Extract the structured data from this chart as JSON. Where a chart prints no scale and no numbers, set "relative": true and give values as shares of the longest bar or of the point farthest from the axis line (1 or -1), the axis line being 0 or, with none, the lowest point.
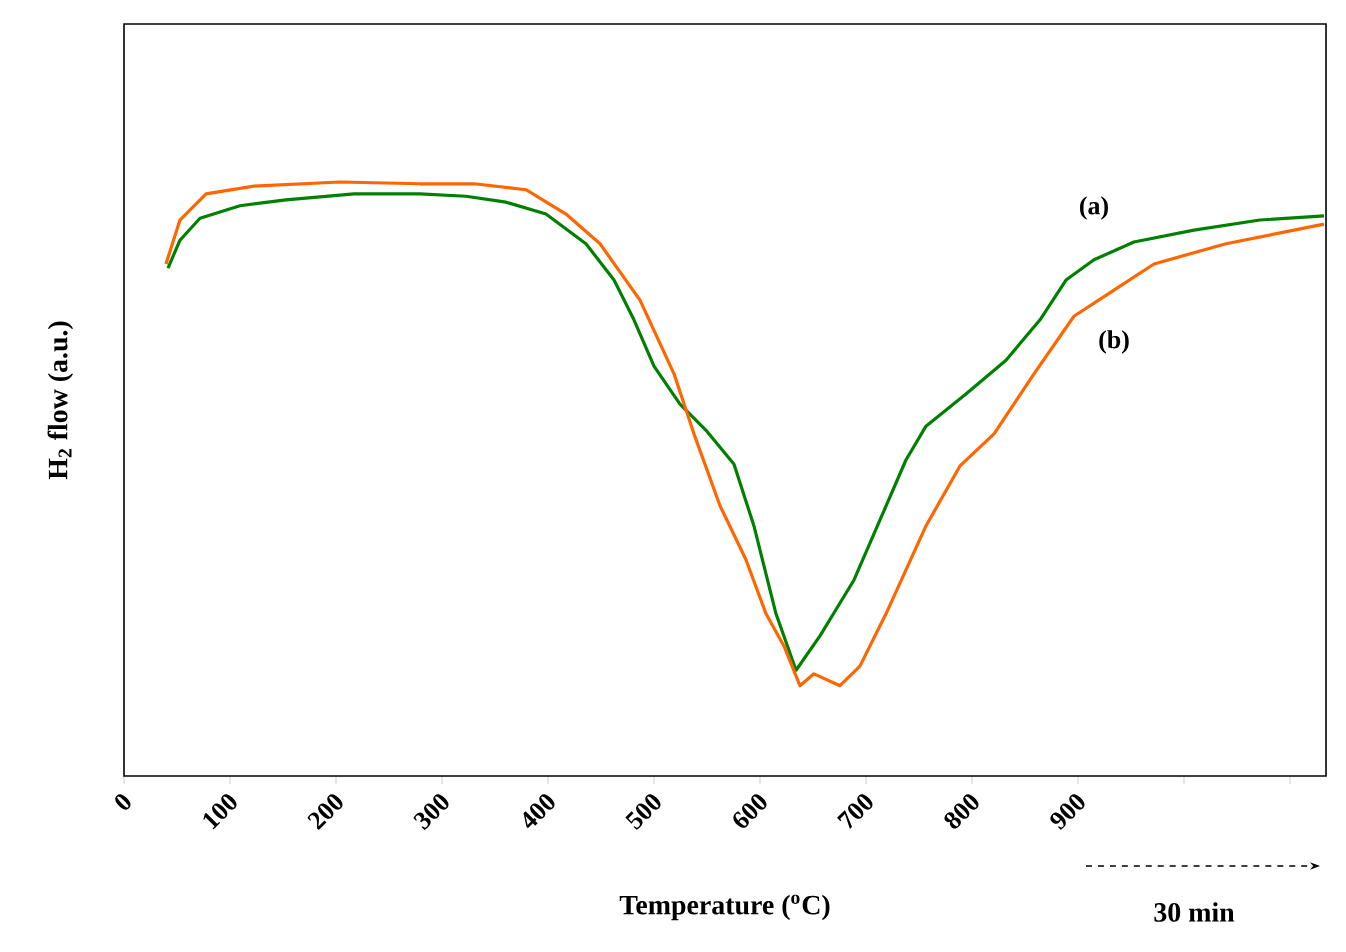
{
  "chart_data": {
    "type": "line",
    "xlabel": "Temperature ($^{o}$C)",
    "ylabel": "H$_{2}$ flow (a.u.)",
    "relative": true,
    "xlim": [
      0,
      1134
    ],
    "xticks": [
      0,
      100,
      200,
      300,
      400,
      500,
      600,
      700,
      800,
      900,
      {
        "value": 1000,
        "label": null
      },
      {
        "value": 1100,
        "label": null
      }
    ],
    "grid": false,
    "marker": "none",
    "line_style": "solid",
    "annotations": [
      "30 min"
    ],
    "series": [
      {
        "name": "(a)",
        "color": "#008000",
        "x": [
          41.5,
          52.8,
          71.7,
          109.4,
          152.8,
          217,
          279.2,
          322.6,
          360.4,
          398.1,
          435.8,
          462.3,
          481.1,
          500,
          524.5,
          549.1,
          575.5,
          594.3,
          615.1,
          634,
          656.6,
          688.7,
          713.2,
          737.7,
          756.6,
          794.3,
          832.1,
          864.2,
          888.7,
          915.1,
          952.8,
          1009.4,
          1071.7,
          1132.1
        ],
        "values": [
          0.855,
          0.902,
          0.939,
          0.96,
          0.97,
          0.98,
          0.98,
          0.976,
          0.966,
          0.946,
          0.896,
          0.835,
          0.768,
          0.69,
          0.626,
          0.582,
          0.525,
          0.421,
          0.273,
          0.178,
          0.236,
          0.33,
          0.431,
          0.532,
          0.589,
          0.643,
          0.7,
          0.768,
          0.835,
          0.869,
          0.899,
          0.919,
          0.936,
          0.943
        ]
      },
      {
        "name": "(b)",
        "color": "#ff6600",
        "x": [
          39.6,
          52.8,
          77.4,
          122.6,
          203.8,
          279.2,
          330.2,
          379.2,
          417,
          449.1,
          486.8,
          518.9,
          537.7,
          562.3,
          586.8,
          605.7,
          622.6,
          637.7,
          650.9,
          675.5,
          694.3,
          718.9,
          756.6,
          788.7,
          820.8,
          858.5,
          896.2,
          934,
          971.7,
          1039.6,
          1103.8,
          1132.1
        ],
        "values": [
          0.862,
          0.936,
          0.98,
          0.993,
          1.0,
          0.997,
          0.997,
          0.987,
          0.946,
          0.896,
          0.801,
          0.677,
          0.576,
          0.455,
          0.364,
          0.273,
          0.219,
          0.152,
          0.172,
          0.152,
          0.185,
          0.273,
          0.421,
          0.522,
          0.576,
          0.677,
          0.774,
          0.818,
          0.862,
          0.896,
          0.919,
          0.929
        ]
      }
    ]
  }
}
